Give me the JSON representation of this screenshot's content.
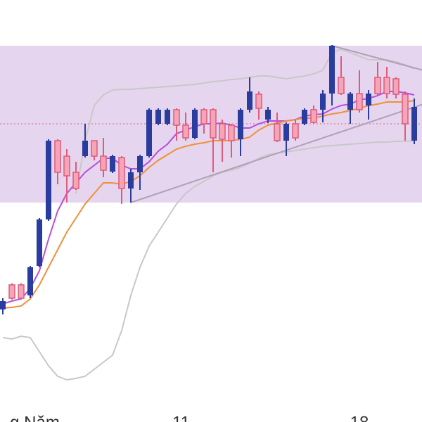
{
  "chart_data": {
    "type": "candlestick",
    "ylim": [
      0,
      600
    ],
    "up_color": "#2a3d9e",
    "down_color": "#e05a7a",
    "down_fill": "#f4a6b8",
    "shaded_range": {
      "from": 312,
      "to": 535,
      "color": "#e6d5ee"
    },
    "reference_line": {
      "value": 424,
      "color": "#e07a8a"
    },
    "candles": {
      "open": [
        160,
        195,
        195,
        180,
        222,
        288,
        400,
        378,
        355,
        378,
        400,
        378,
        356,
        376,
        332,
        355,
        378,
        424,
        424,
        444,
        422,
        404,
        444,
        444,
        424,
        422,
        402,
        444,
        466,
        430,
        424,
        400,
        424,
        424,
        444,
        444,
        467,
        490,
        444,
        467,
        450,
        490,
        490,
        488,
        466,
        400
      ],
      "close": [
        172,
        176,
        176,
        220,
        288,
        400,
        355,
        350,
        332,
        400,
        378,
        358,
        378,
        332,
        355,
        378,
        444,
        444,
        444,
        422,
        404,
        444,
        424,
        404,
        402,
        400,
        444,
        470,
        446,
        444,
        400,
        424,
        404,
        444,
        426,
        467,
        535,
        467,
        467,
        444,
        467,
        467,
        467,
        466,
        424,
        448
      ],
      "high": [
        176,
        197,
        197,
        222,
        290,
        402,
        402,
        388,
        370,
        424,
        400,
        404,
        380,
        378,
        360,
        380,
        446,
        446,
        446,
        446,
        440,
        446,
        446,
        446,
        430,
        424,
        446,
        490,
        470,
        448,
        440,
        426,
        430,
        446,
        450,
        472,
        536,
        520,
        469,
        500,
        472,
        512,
        505,
        490,
        470,
        460
      ],
      "low": [
        153,
        174,
        174,
        176,
        220,
        286,
        338,
        312,
        330,
        376,
        372,
        348,
        354,
        310,
        312,
        330,
        376,
        422,
        422,
        400,
        400,
        402,
        410,
        355,
        370,
        376,
        378,
        440,
        430,
        425,
        398,
        378,
        400,
        422,
        424,
        426,
        450,
        465,
        424,
        440,
        430,
        465,
        460,
        460,
        400,
        395
      ]
    },
    "overlays": [
      {
        "color": "#b44fe0",
        "width": 2,
        "values": [
          168,
          172,
          175,
          190,
          215,
          260,
          300,
          325,
          340,
          355,
          365,
          375,
          375,
          365,
          360,
          360,
          370,
          385,
          395,
          410,
          415,
          420,
          424,
          424,
          425,
          422,
          418,
          418,
          424,
          428,
          428,
          428,
          430,
          435,
          437,
          438,
          445,
          450,
          452,
          458,
          460,
          464,
          470,
          470,
          468,
          465
        ]
      },
      {
        "color": "#f0903a",
        "width": 2,
        "values": [
          162,
          163,
          165,
          175,
          195,
          220,
          245,
          270,
          290,
          310,
          325,
          340,
          340,
          338,
          342,
          350,
          362,
          372,
          380,
          388,
          392,
          395,
          397,
          400,
          400,
          400,
          402,
          405,
          415,
          422,
          425,
          428,
          430,
          432,
          432,
          435,
          438,
          440,
          443,
          446,
          450,
          452,
          455,
          455,
          455,
          457
        ]
      },
      {
        "color": "#c8c8c8",
        "width": 2,
        "values": [
          null,
          null,
          null,
          null,
          null,
          null,
          null,
          null,
          325,
          400,
          450,
          465,
          472,
          473,
          473,
          474,
          475,
          476,
          477,
          478,
          479,
          480,
          482,
          484,
          485,
          487,
          488,
          490,
          492,
          492,
          490,
          488,
          490,
          492,
          495,
          500,
          525,
          530,
          525,
          520,
          515,
          515,
          515,
          512,
          508,
          502
        ]
      },
      {
        "color": "#c8c8c8",
        "width": 2,
        "values": [
          120,
          118,
          122,
          120,
          100,
          80,
          65,
          60,
          62,
          65,
          75,
          85,
          95,
          130,
          180,
          220,
          250,
          270,
          290,
          310,
          325,
          335,
          342,
          350,
          355,
          358,
          362,
          368,
          375,
          380,
          382,
          384,
          386,
          388,
          390,
          392,
          393,
          394,
          395,
          396,
          397,
          398,
          398,
          399,
          399,
          400
        ]
      }
    ],
    "trendlines": [
      {
        "color": "#b0a0b8",
        "x": [
          14,
          46
        ],
        "y": [
          312,
          452
        ]
      },
      {
        "color": "#b0a0b8",
        "x": [
          36,
          46
        ],
        "y": [
          535,
          500
        ]
      }
    ],
    "x_labels": [
      {
        "value": 3.5,
        "label": "g Năm"
      },
      {
        "value": 19.5,
        "label": "11"
      },
      {
        "value": 39,
        "label": "18"
      }
    ]
  }
}
